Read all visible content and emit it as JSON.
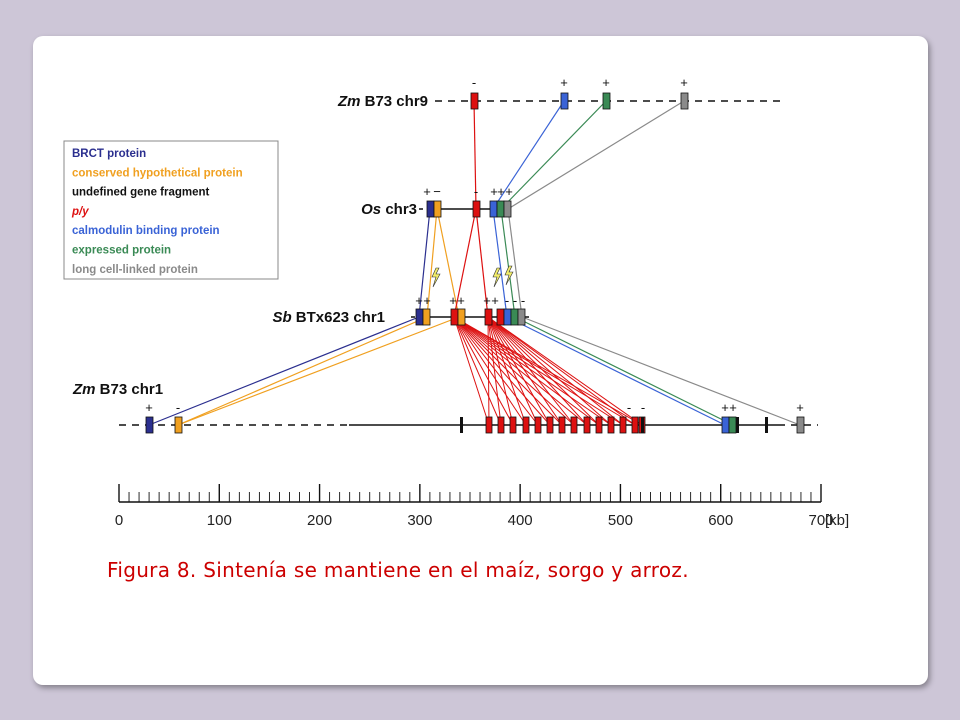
{
  "caption": "Figura 8. Sintenía se mantiene en el maíz, sorgo y arroz.",
  "colors": {
    "brct": "#2b2f8f",
    "conserved": "#f0a020",
    "undefined": "#111111",
    "py": "#dd1111",
    "calmodulin": "#3a63d6",
    "expressed": "#3a8a55",
    "long": "#8a8a8a"
  },
  "legend": [
    {
      "label": "BRCT protein",
      "color": "#2b2f8f"
    },
    {
      "label": "conserved hypothetical protein",
      "color": "#f0a020"
    },
    {
      "label": "undefined gene fragment",
      "color": "#111111"
    },
    {
      "label": "p/y",
      "color": "#dd1111",
      "italic": true
    },
    {
      "label": "calmodulin binding protein",
      "color": "#3a63d6"
    },
    {
      "label": "expressed protein",
      "color": "#3a8a55"
    },
    {
      "label": "long cell-linked protein",
      "color": "#8a8a8a"
    }
  ],
  "chromosomes": [
    {
      "id": "zm9",
      "species": "Zm",
      "name": "B73 chr9"
    },
    {
      "id": "os3",
      "species": "Os",
      "name": "chr3"
    },
    {
      "id": "sb1",
      "species": "Sb",
      "name": "BTx623 chr1"
    },
    {
      "id": "zm1",
      "species": "Zm",
      "name": "B73 chr1"
    }
  ],
  "scale": {
    "unit": "[kb]",
    "ticks": [
      "0",
      "100",
      "200",
      "300",
      "400",
      "500",
      "600",
      "700"
    ]
  }
}
